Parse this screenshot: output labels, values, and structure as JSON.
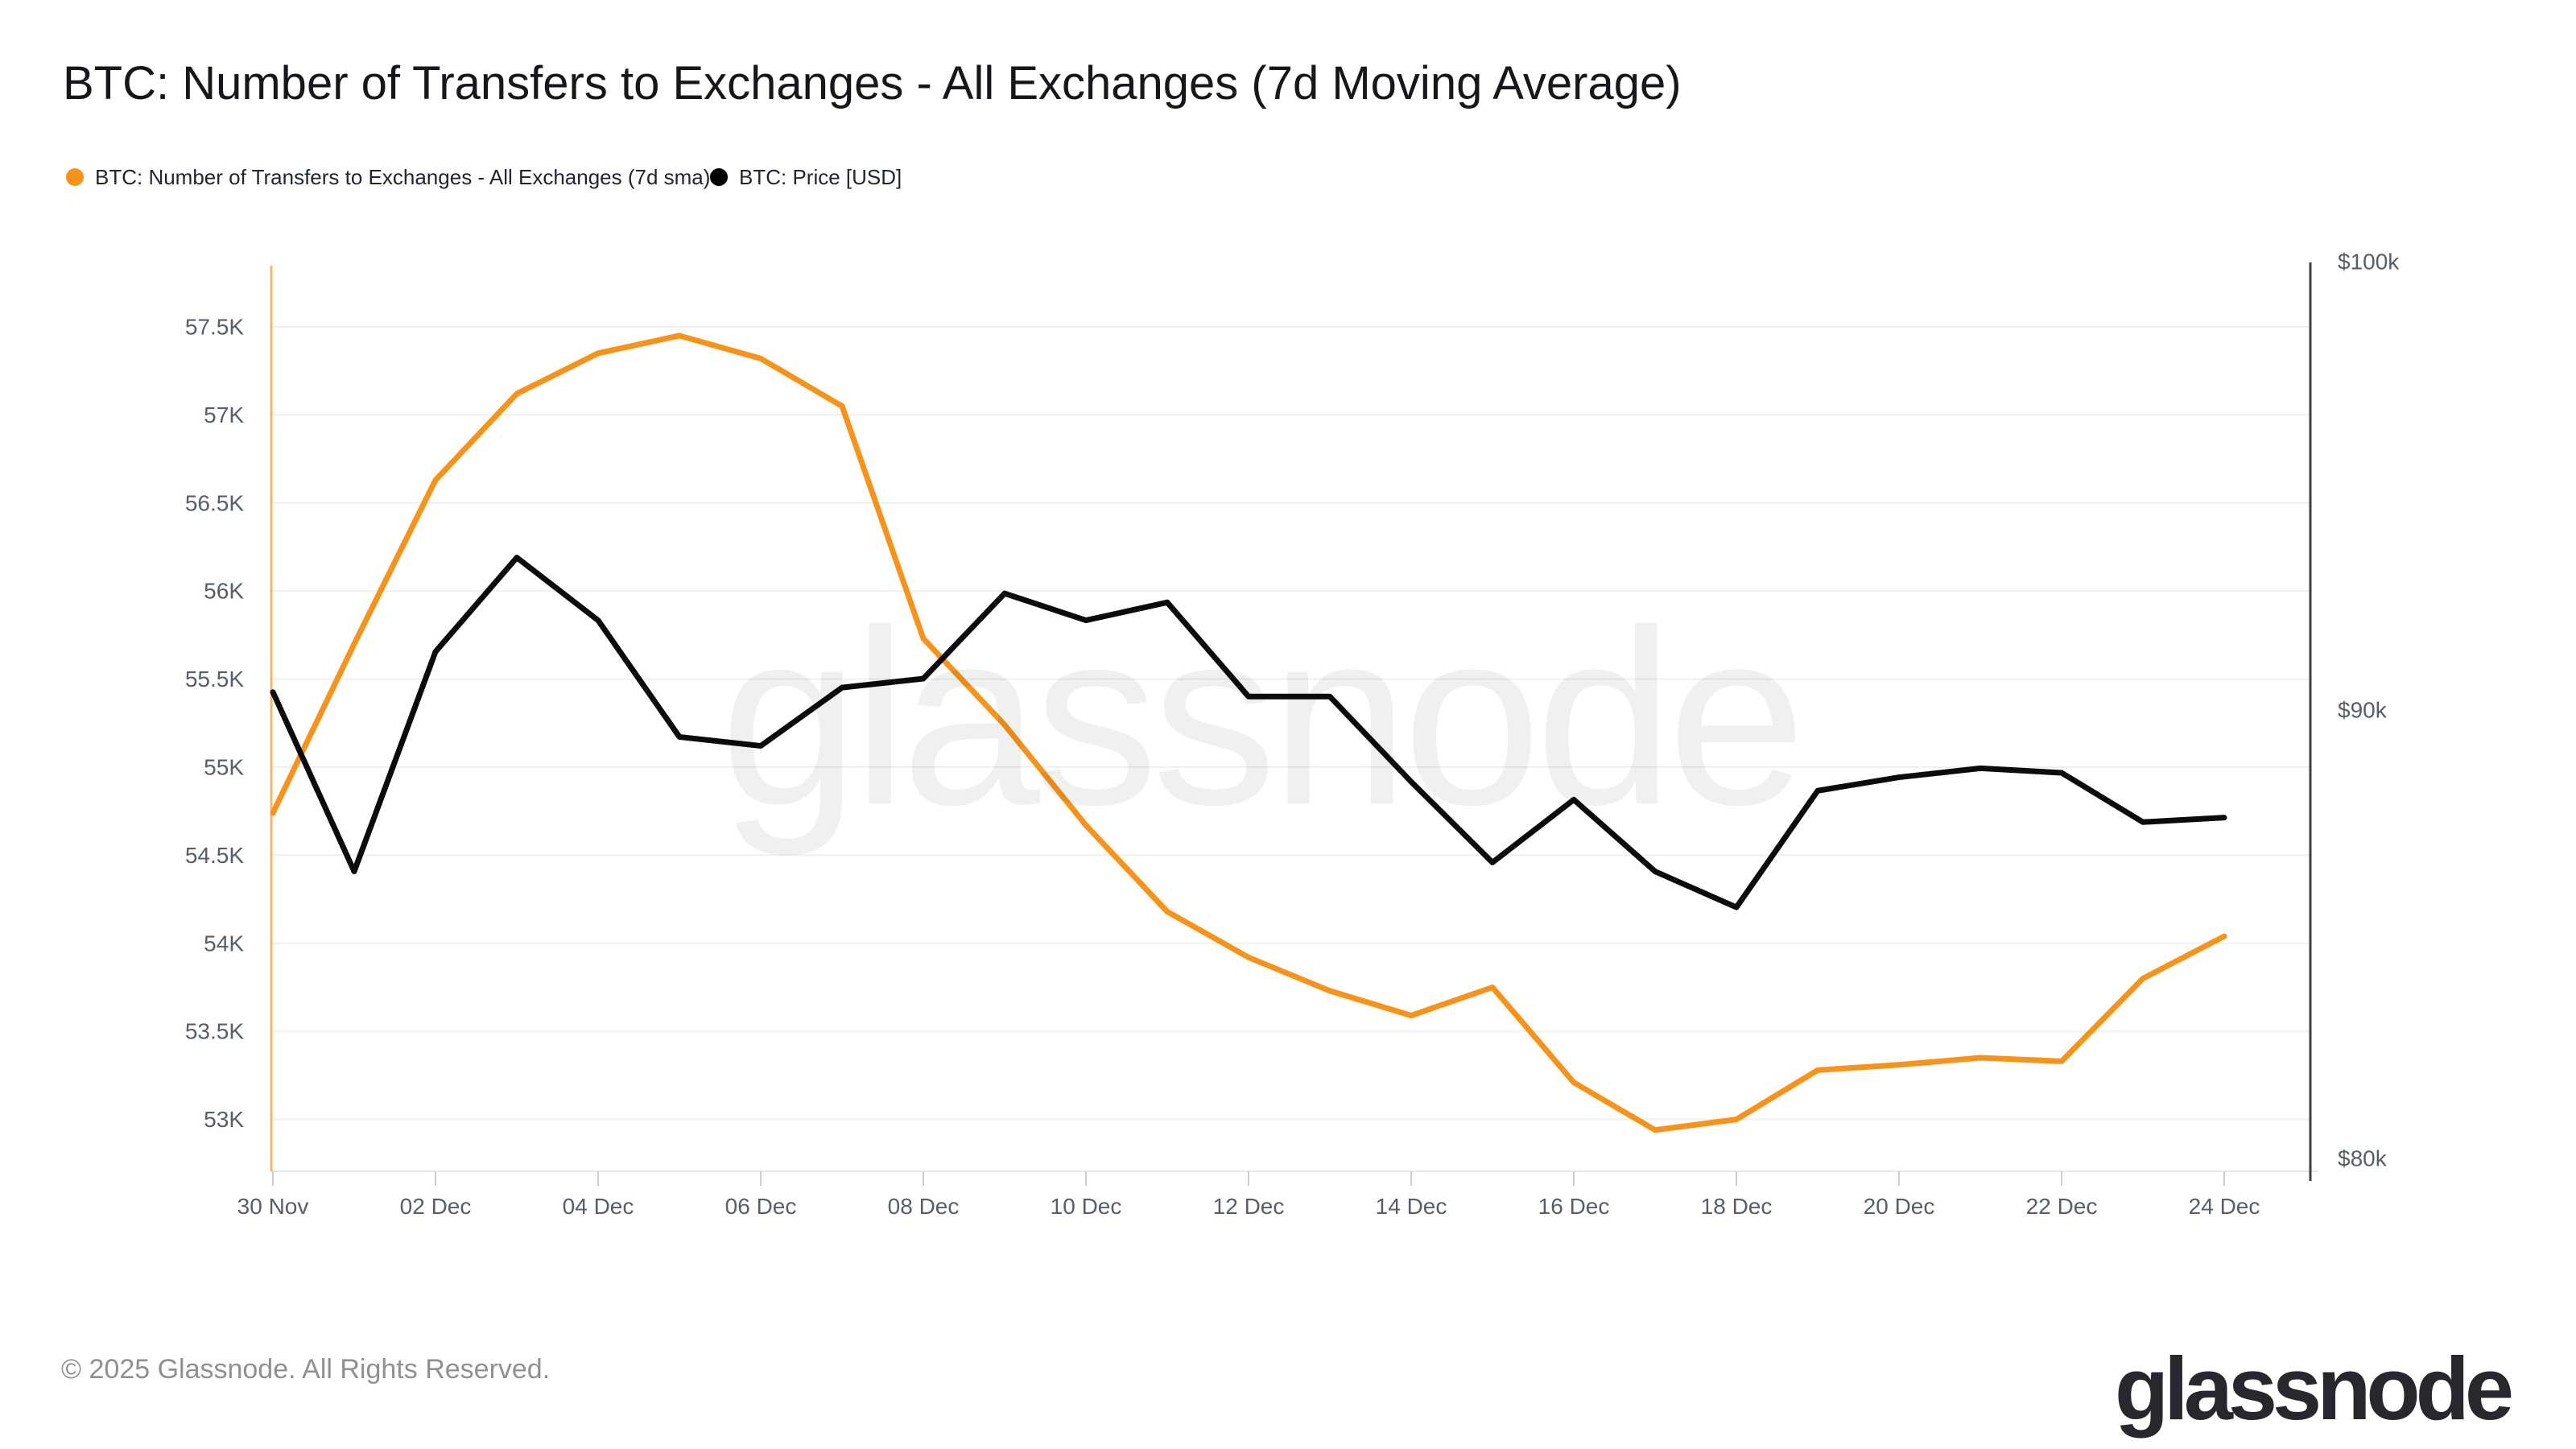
{
  "header": {
    "title": "BTC: Number of Transfers to Exchanges - All Exchanges (7d Moving Average)",
    "legend": [
      {
        "label": "BTC: Number of Transfers to Exchanges - All Exchanges (7d sma)",
        "color": "#F7931A"
      },
      {
        "label": "BTC: Price [USD]",
        "color": "#000000"
      }
    ]
  },
  "chart_data": {
    "type": "line",
    "title": "BTC: Number of Transfers to Exchanges - All Exchanges (7d Moving Average)",
    "grid": "horizontal",
    "legend_position": "top-left",
    "watermark": "glassnode",
    "x": [
      "30 Nov",
      "01 Dec",
      "02 Dec",
      "03 Dec",
      "04 Dec",
      "05 Dec",
      "06 Dec",
      "07 Dec",
      "08 Dec",
      "09 Dec",
      "10 Dec",
      "11 Dec",
      "12 Dec",
      "13 Dec",
      "14 Dec",
      "15 Dec",
      "16 Dec",
      "17 Dec",
      "18 Dec",
      "19 Dec",
      "20 Dec",
      "21 Dec",
      "22 Dec",
      "23 Dec",
      "24 Dec"
    ],
    "x_axis": {
      "ticks": [
        {
          "label": "30 Nov",
          "index": 0
        },
        {
          "label": "02 Dec",
          "index": 2
        },
        {
          "label": "04 Dec",
          "index": 4
        },
        {
          "label": "06 Dec",
          "index": 6
        },
        {
          "label": "08 Dec",
          "index": 8
        },
        {
          "label": "10 Dec",
          "index": 10
        },
        {
          "label": "12 Dec",
          "index": 12
        },
        {
          "label": "14 Dec",
          "index": 14
        },
        {
          "label": "16 Dec",
          "index": 16
        },
        {
          "label": "18 Dec",
          "index": 18
        },
        {
          "label": "20 Dec",
          "index": 20
        },
        {
          "label": "22 Dec",
          "index": 22
        },
        {
          "label": "24 Dec",
          "index": 24
        }
      ]
    },
    "y_axis_left": {
      "unit": "transfers (thousands)",
      "ticks": [
        {
          "label": "57.5K",
          "value": 57.5
        },
        {
          "label": "57K",
          "value": 57.0
        },
        {
          "label": "56.5K",
          "value": 56.5
        },
        {
          "label": "56K",
          "value": 56.0
        },
        {
          "label": "55.5K",
          "value": 55.5
        },
        {
          "label": "55K",
          "value": 55.0
        },
        {
          "label": "54.5K",
          "value": 54.5
        },
        {
          "label": "54K",
          "value": 54.0
        },
        {
          "label": "53.5K",
          "value": 53.5
        },
        {
          "label": "53K",
          "value": 53.0
        }
      ]
    },
    "y_axis_right": {
      "unit": "USD (thousands)",
      "ticks": [
        {
          "label": "$100k",
          "value": 100
        },
        {
          "label": "$90k",
          "value": 90
        },
        {
          "label": "$80k",
          "value": 80
        }
      ]
    },
    "series": [
      {
        "name": "BTC: Number of Transfers to Exchanges - All Exchanges (7d sma)",
        "axis": "left",
        "color": "#F7931A",
        "values": [
          54.74,
          55.7,
          56.63,
          57.12,
          57.35,
          57.45,
          57.32,
          57.05,
          55.73,
          55.24,
          54.67,
          54.18,
          53.92,
          53.73,
          53.59,
          53.75,
          53.21,
          52.94,
          53.0,
          53.28,
          53.31,
          53.35,
          53.33,
          53.8,
          54.04
        ]
      },
      {
        "name": "BTC: Price [USD]",
        "axis": "right",
        "color": "#0b0b0b",
        "values": [
          90.4,
          86.4,
          91.3,
          93.4,
          92.0,
          89.4,
          89.2,
          90.5,
          90.7,
          92.6,
          92.0,
          92.4,
          90.3,
          90.3,
          88.4,
          86.6,
          88.0,
          86.4,
          85.6,
          88.2,
          88.5,
          88.7,
          88.6,
          87.5,
          87.6
        ]
      }
    ]
  },
  "footer": {
    "copyright": "© 2025 Glassnode. All Rights Reserved.",
    "logo_text": "glassnode"
  }
}
